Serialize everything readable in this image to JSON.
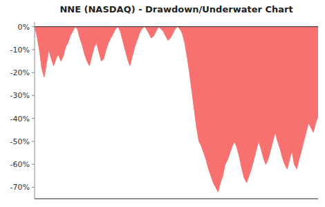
{
  "chart_data": {
    "type": "area",
    "title": "NNE (NASDAQ) - Drawdown/Underwater Chart",
    "color": "#f87171",
    "values": [
      0.0,
      -0.04,
      -0.1,
      -0.18,
      -0.22,
      -0.16,
      -0.1,
      -0.14,
      -0.17,
      -0.14,
      -0.12,
      -0.15,
      -0.13,
      -0.09,
      -0.07,
      -0.04,
      -0.02,
      0.0,
      -0.01,
      -0.05,
      -0.08,
      -0.12,
      -0.15,
      -0.17,
      -0.13,
      -0.09,
      -0.07,
      -0.11,
      -0.15,
      -0.14,
      -0.1,
      -0.07,
      -0.05,
      -0.03,
      -0.01,
      0.0,
      -0.02,
      -0.06,
      -0.1,
      -0.14,
      -0.17,
      -0.13,
      -0.09,
      -0.06,
      -0.03,
      -0.01,
      0.0,
      -0.01,
      -0.03,
      -0.05,
      -0.04,
      -0.02,
      0.0,
      -0.01,
      -0.02,
      -0.04,
      -0.06,
      -0.05,
      -0.03,
      -0.01,
      0.0,
      -0.01,
      -0.03,
      -0.07,
      -0.13,
      -0.2,
      -0.28,
      -0.36,
      -0.44,
      -0.5,
      -0.52,
      -0.55,
      -0.58,
      -0.62,
      -0.65,
      -0.68,
      -0.7,
      -0.72,
      -0.68,
      -0.65,
      -0.6,
      -0.58,
      -0.55,
      -0.52,
      -0.5,
      -0.53,
      -0.57,
      -0.62,
      -0.66,
      -0.68,
      -0.65,
      -0.62,
      -0.58,
      -0.54,
      -0.5,
      -0.53,
      -0.57,
      -0.6,
      -0.58,
      -0.54,
      -0.5,
      -0.46,
      -0.5,
      -0.53,
      -0.57,
      -0.6,
      -0.62,
      -0.58,
      -0.54,
      -0.6,
      -0.62,
      -0.58,
      -0.54,
      -0.5,
      -0.46,
      -0.42,
      -0.44,
      -0.46,
      -0.42,
      -0.39
    ],
    "ylim": [
      -0.75,
      0.02
    ],
    "yticks": [
      {
        "value": 0,
        "label": "0%"
      },
      {
        "value": -0.1,
        "label": "-10%"
      },
      {
        "value": -0.2,
        "label": "-20%"
      },
      {
        "value": -0.3,
        "label": "-30%"
      },
      {
        "value": -0.4,
        "label": "-40%"
      },
      {
        "value": -0.5,
        "label": "-50%"
      },
      {
        "value": -0.6,
        "label": "-60%"
      },
      {
        "value": -0.7,
        "label": "-70%"
      }
    ],
    "tick_labels": "y",
    "grid": false
  }
}
